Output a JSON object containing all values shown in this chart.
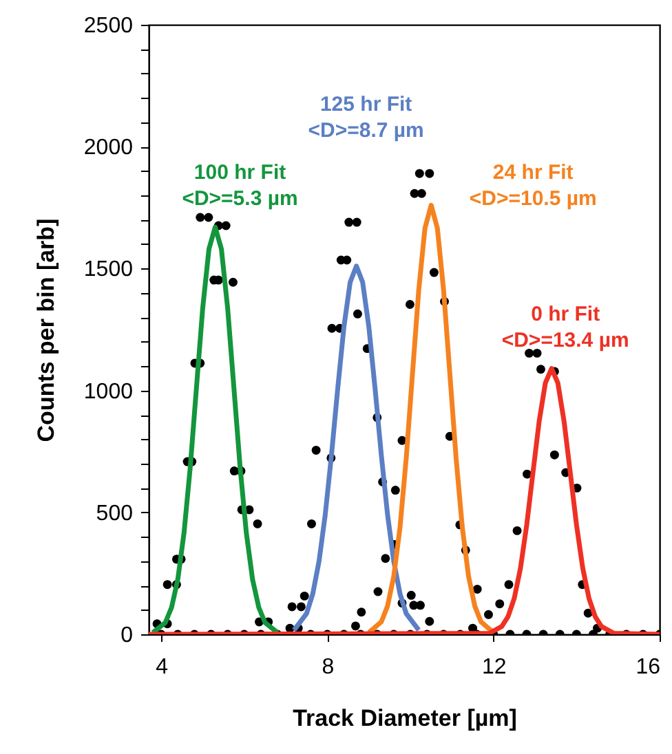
{
  "chart_data": {
    "type": "line",
    "xlabel": "Track Diameter [µm]",
    "ylabel": "Counts per bin [arb]",
    "xlim": [
      3.7,
      16
    ],
    "xticks": [
      4,
      8,
      12,
      16
    ],
    "ylim": [
      0,
      2500
    ],
    "yticks": [
      0,
      {
        "value": 100,
        "label": null
      },
      {
        "value": 200,
        "label": null
      },
      {
        "value": 300,
        "label": null
      },
      {
        "value": 400,
        "label": null
      },
      500,
      {
        "value": 600,
        "label": null
      },
      {
        "value": 700,
        "label": null
      },
      {
        "value": 800,
        "label": null
      },
      {
        "value": 900,
        "label": null
      },
      1000,
      {
        "value": 1100,
        "label": null
      },
      {
        "value": 1200,
        "label": null
      },
      {
        "value": 1300,
        "label": null
      },
      {
        "value": 1400,
        "label": null
      },
      1500,
      {
        "value": 1600,
        "label": null
      },
      {
        "value": 1700,
        "label": null
      },
      {
        "value": 1800,
        "label": null
      },
      {
        "value": 1900,
        "label": null
      },
      2000,
      {
        "value": 2100,
        "label": null
      },
      {
        "value": 2200,
        "label": null
      },
      {
        "value": 2300,
        "label": null
      },
      {
        "value": 2400,
        "label": null
      },
      2500
    ],
    "series": [
      {
        "type": "scatter",
        "marker": "circle",
        "color": "#000000",
        "x": [
          3.9,
          4.15,
          4.15,
          4.37,
          4.37,
          4.48,
          4.63,
          4.74,
          4.81,
          4.94,
          4.94,
          5.14,
          5.27,
          5.38,
          5.38,
          5.56,
          5.73,
          5.76,
          5.92,
          5.94,
          6.12,
          6.32,
          6.36,
          6.58,
          7.1,
          7.3,
          7.15,
          7.37,
          7.45,
          7.62,
          7.73,
          8.09,
          8.11,
          8.3,
          8.33,
          8.47,
          8.52,
          8.71,
          8.73,
          8.96,
          9.2,
          9.33,
          9.64,
          9.61,
          9.4,
          9.22,
          8.82,
          8.68,
          9.8,
          9.8,
          9.99,
          10.1,
          10.27,
          10.22,
          10.46,
          10.57,
          10.82,
          10.95,
          11.19,
          11.33,
          10.02,
          10.08,
          10.24,
          10.46,
          11.61,
          11.5,
          11.88,
          12.15,
          12.37,
          12.57,
          12.81,
          12.86,
          13.05,
          13.14,
          13.47,
          13.47,
          13.74,
          14.01,
          14.14,
          14.28,
          14.5,
          4.0,
          4.4,
          4.8,
          5.2,
          5.6,
          6.0,
          6.4,
          6.8,
          7.6,
          8.0,
          8.4,
          8.8,
          9.2,
          9.6,
          10.0,
          10.4,
          10.8,
          11.2,
          11.6,
          12.0,
          12.4,
          12.8,
          13.2,
          13.6,
          14.0,
          14.4,
          14.8,
          15.2,
          15.6,
          16.0
        ],
        "values": [
          43,
          43,
          204,
          204,
          308,
          308,
          708,
          708,
          1112,
          1112,
          1710,
          1710,
          1453,
          1453,
          1676,
          1676,
          1444,
          670,
          670,
          511,
          511,
          453,
          51,
          51,
          25,
          25,
          113,
          113,
          157,
          453,
          755,
          723,
          1255,
          1255,
          1535,
          1535,
          1690,
          1690,
          1314,
          1172,
          889,
          625,
          591,
          368,
          311,
          175,
          91,
          34,
          128,
          795,
          1353,
          1808,
          1808,
          1890,
          1890,
          1484,
          1365,
          812,
          449,
          345,
          160,
          119,
          119,
          53,
          185,
          25,
          81,
          125,
          204,
          425,
          657,
          1153,
          1153,
          1087,
          1078,
          736,
          663,
          600,
          204,
          87,
          25,
          0,
          0,
          0,
          0,
          0,
          0,
          0,
          0,
          0,
          0,
          0,
          0,
          0,
          0,
          0,
          0,
          0,
          0,
          0,
          0,
          0,
          0,
          0,
          0,
          0,
          0,
          0,
          0,
          0,
          0
        ]
      },
      {
        "name": "100 hr Fit\n<D>=5.3 µm",
        "color": "#13963d",
        "line_style": "solid",
        "x": [
          3.8,
          4.1,
          4.25,
          4.4,
          4.55,
          4.7,
          4.85,
          5.0,
          5.15,
          5.3,
          5.45,
          5.6,
          5.75,
          5.9,
          6.05,
          6.2,
          6.35,
          6.5,
          6.8
        ],
        "values": [
          7,
          48,
          110,
          225,
          416,
          686,
          1013,
          1338,
          1580,
          1670,
          1580,
          1338,
          1013,
          686,
          416,
          225,
          110,
          48,
          7
        ]
      },
      {
        "name": "125 hr Fit\n<D>=8.7 µm",
        "color": "#5b7fc4",
        "line_style": "solid",
        "x": [
          7.2,
          7.5,
          7.65,
          7.8,
          7.95,
          8.1,
          8.25,
          8.4,
          8.55,
          8.7,
          8.85,
          9.0,
          9.15,
          9.3,
          9.45,
          9.6,
          9.75,
          9.9,
          10.2
        ],
        "values": [
          17,
          85,
          166,
          299,
          491,
          735,
          1007,
          1261,
          1444,
          1510,
          1444,
          1261,
          1007,
          735,
          491,
          299,
          166,
          85,
          17
        ]
      },
      {
        "name": "24 hr Fit\n<D>=10.5 µm",
        "color": "#f58220",
        "line_style": "solid",
        "x": [
          9.0,
          9.3,
          9.45,
          9.6,
          9.75,
          9.9,
          10.05,
          10.2,
          10.35,
          10.5,
          10.65,
          10.8,
          10.95,
          11.1,
          11.25,
          11.4,
          11.55,
          11.7,
          12.0
        ],
        "values": [
          7,
          51,
          116,
          238,
          438,
          723,
          1068,
          1410,
          1665,
          1760,
          1665,
          1410,
          1068,
          723,
          438,
          238,
          116,
          51,
          7
        ]
      },
      {
        "name": "0 hr Fit\n<D>=13.4 µm",
        "color": "#ee3124",
        "line_style": "solid",
        "x": [
          3.7,
          11.9,
          12.2,
          12.35,
          12.5,
          12.65,
          12.8,
          12.95,
          13.1,
          13.25,
          13.4,
          13.55,
          13.7,
          13.85,
          14.0,
          14.15,
          14.3,
          14.45,
          14.6,
          14.9,
          16.0
        ],
        "values": [
          0,
          4,
          32,
          72,
          147,
          271,
          448,
          662,
          873,
          1031,
          1090,
          1031,
          873,
          662,
          448,
          271,
          147,
          72,
          32,
          4,
          0
        ]
      }
    ]
  }
}
